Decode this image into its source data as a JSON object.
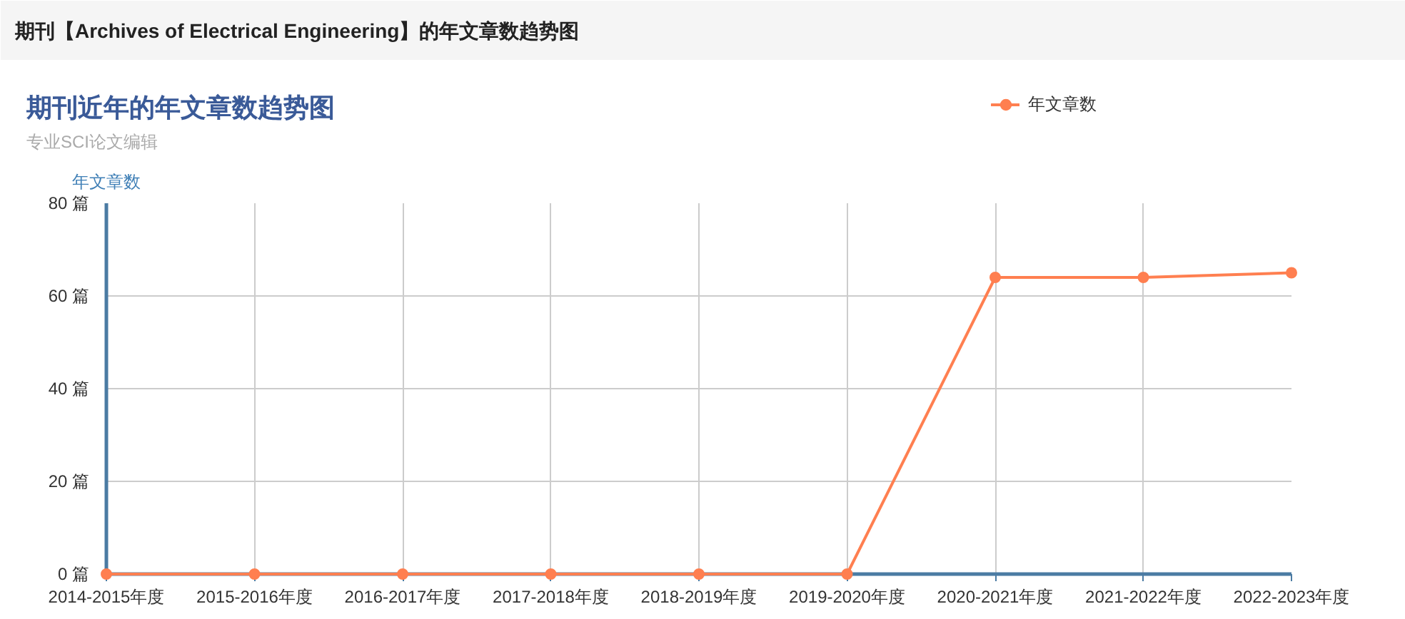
{
  "chart_data": {
    "type": "line",
    "title": "期刊近年的年文章数趋势图",
    "subtitle": "专业SCI论文编辑",
    "annotations": [
      "期刊【Archives of Electrical Engineering】的年文章数趋势图"
    ],
    "ylabel": "年文章数",
    "categories": [
      "2014-2015年度",
      "2015-2016年度",
      "2016-2017年度",
      "2017-2018年度",
      "2018-2019年度",
      "2019-2020年度",
      "2020-2021年度",
      "2021-2022年度",
      "2022-2023年度"
    ],
    "series": [
      {
        "name": "年文章数",
        "color": "#ff7f50",
        "values": [
          0,
          0,
          0,
          0,
          0,
          0,
          64,
          64,
          65
        ]
      }
    ],
    "ylim": [
      0,
      80
    ],
    "yticks": [
      {
        "value": 0,
        "label": "0 篇"
      },
      {
        "value": 20,
        "label": "20 篇"
      },
      {
        "value": 40,
        "label": "40 篇"
      },
      {
        "value": 60,
        "label": "60 篇"
      },
      {
        "value": 80,
        "label": "80 篇"
      }
    ],
    "grid": true,
    "legend": "top right",
    "marker": "circle",
    "line_style": "solid"
  }
}
